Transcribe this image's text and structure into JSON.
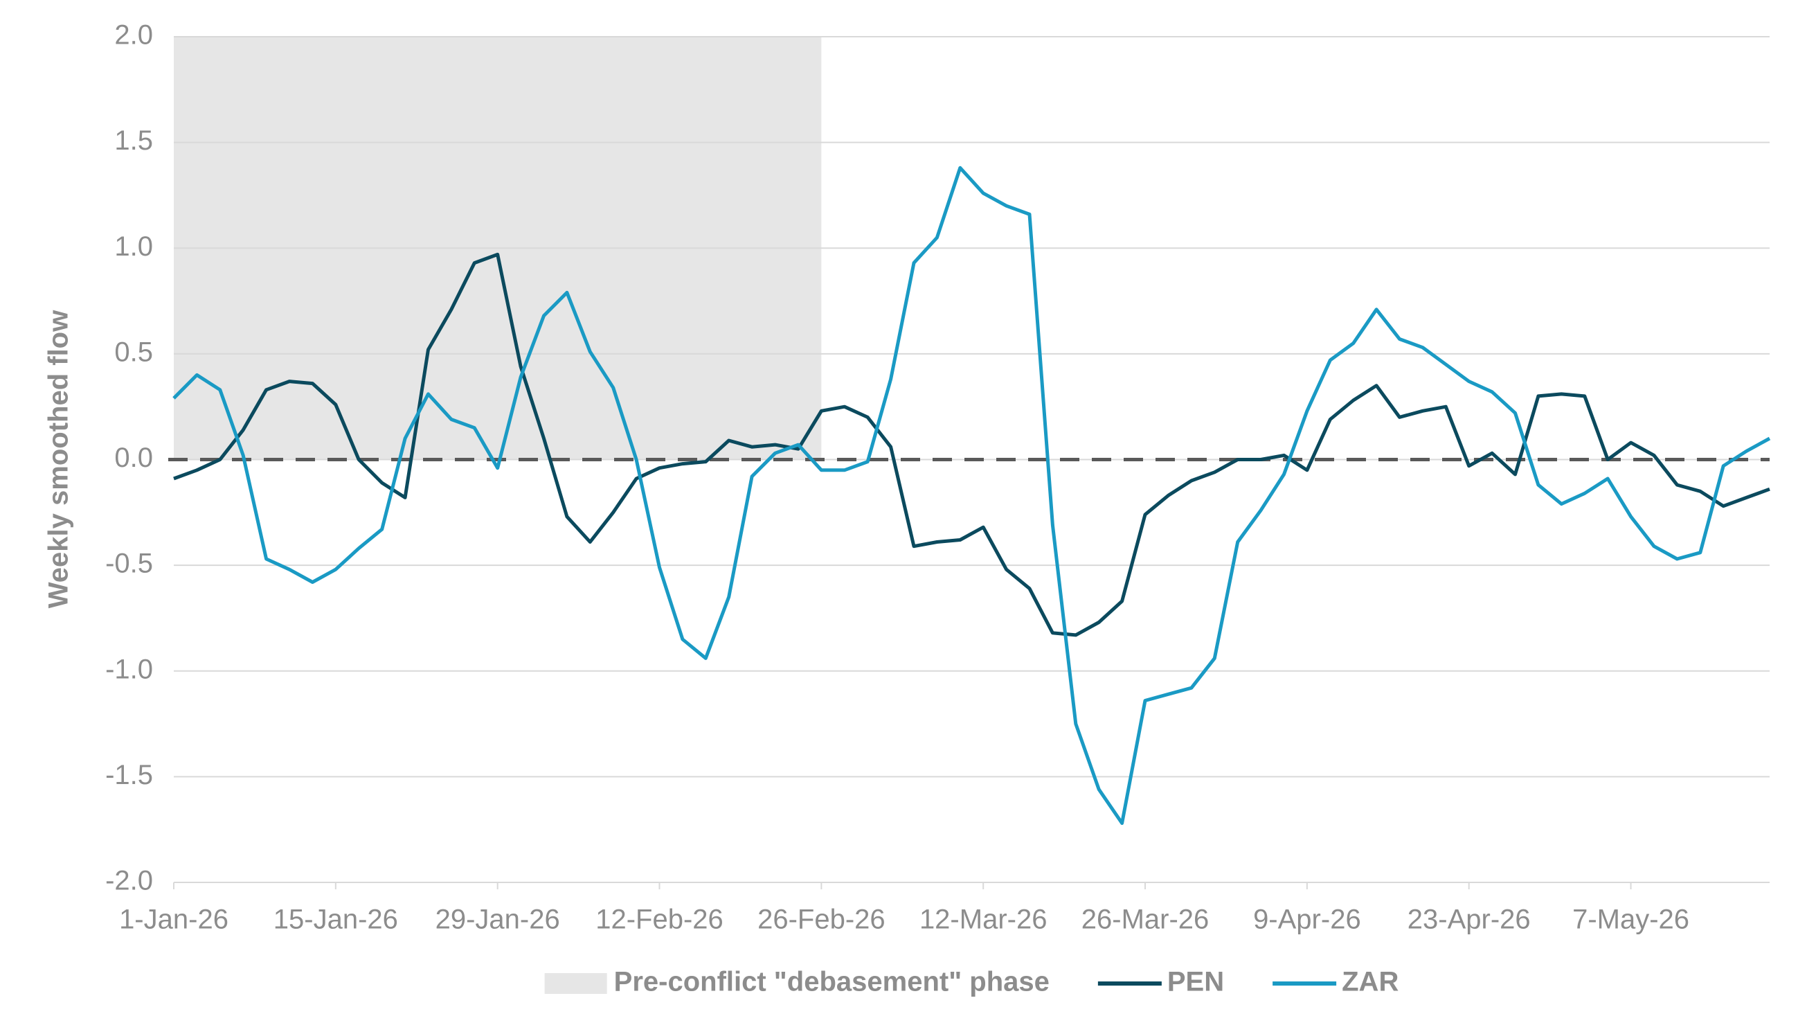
{
  "chart_data": {
    "type": "line",
    "y_label": "Weekly smoothed flow",
    "x": [
      "2026-01-01",
      "2026-01-03",
      "2026-01-05",
      "2026-01-07",
      "2026-01-09",
      "2026-01-11",
      "2026-01-13",
      "2026-01-15",
      "2026-01-17",
      "2026-01-19",
      "2026-01-21",
      "2026-01-23",
      "2026-01-25",
      "2026-01-27",
      "2026-01-29",
      "2026-01-31",
      "2026-02-02",
      "2026-02-04",
      "2026-02-06",
      "2026-02-08",
      "2026-02-10",
      "2026-02-12",
      "2026-02-14",
      "2026-02-16",
      "2026-02-18",
      "2026-02-20",
      "2026-02-22",
      "2026-02-24",
      "2026-02-26",
      "2026-02-28",
      "2026-03-02",
      "2026-03-04",
      "2026-03-06",
      "2026-03-08",
      "2026-03-10",
      "2026-03-12",
      "2026-03-14",
      "2026-03-16",
      "2026-03-18",
      "2026-03-20",
      "2026-03-22",
      "2026-03-24",
      "2026-03-26",
      "2026-03-28",
      "2026-03-30",
      "2026-04-01",
      "2026-04-03",
      "2026-04-05",
      "2026-04-07",
      "2026-04-09",
      "2026-04-11",
      "2026-04-13",
      "2026-04-15",
      "2026-04-17",
      "2026-04-19",
      "2026-04-21",
      "2026-04-23",
      "2026-04-25",
      "2026-04-27",
      "2026-04-29",
      "2026-05-01",
      "2026-05-03",
      "2026-05-05",
      "2026-05-07",
      "2026-05-09",
      "2026-05-11",
      "2026-05-13",
      "2026-05-15",
      "2026-05-17",
      "2026-05-19"
    ],
    "series": [
      {
        "name": "PEN",
        "color": "#0b4a5e",
        "values": [
          -0.09,
          -0.05,
          0.0,
          0.14,
          0.33,
          0.37,
          0.36,
          0.26,
          0.0,
          -0.11,
          -0.18,
          0.52,
          0.71,
          0.93,
          0.97,
          0.44,
          0.1,
          -0.27,
          -0.39,
          -0.25,
          -0.09,
          -0.04,
          -0.02,
          -0.01,
          0.09,
          0.06,
          0.07,
          0.05,
          0.23,
          0.25,
          0.2,
          0.06,
          -0.41,
          -0.39,
          -0.38,
          -0.32,
          -0.52,
          -0.61,
          -0.82,
          -0.83,
          -0.77,
          -0.67,
          -0.26,
          -0.17,
          -0.1,
          -0.06,
          0.0,
          0.0,
          0.02,
          -0.05,
          0.19,
          0.28,
          0.35,
          0.2,
          0.23,
          0.25,
          -0.03,
          0.03,
          -0.07,
          0.3,
          0.31,
          0.3,
          0.0,
          0.08,
          0.02,
          -0.12,
          -0.15,
          -0.22,
          -0.18,
          -0.14
        ]
      },
      {
        "name": "ZAR",
        "color": "#1a9ac4",
        "values": [
          0.29,
          0.4,
          0.33,
          0.02,
          -0.47,
          -0.52,
          -0.58,
          -0.52,
          -0.42,
          -0.33,
          0.1,
          0.31,
          0.19,
          0.15,
          -0.04,
          0.39,
          0.68,
          0.79,
          0.51,
          0.34,
          0.0,
          -0.51,
          -0.85,
          -0.94,
          -0.65,
          -0.08,
          0.03,
          0.07,
          -0.05,
          -0.05,
          -0.01,
          0.38,
          0.93,
          1.05,
          1.38,
          1.26,
          1.2,
          1.16,
          -0.31,
          -1.25,
          -1.56,
          -1.72,
          -1.14,
          -1.11,
          -1.08,
          -0.94,
          -0.39,
          -0.24,
          -0.07,
          0.23,
          0.47,
          0.55,
          0.71,
          0.57,
          0.53,
          0.45,
          0.37,
          0.32,
          0.22,
          -0.12,
          -0.21,
          -0.16,
          -0.09,
          -0.27,
          -0.41,
          -0.47,
          -0.44,
          -0.03,
          0.04,
          0.1
        ]
      }
    ],
    "shaded_region": {
      "label": "Pre-conflict \"debasement\" phase",
      "color": "#e6e6e6",
      "x": [
        "2026-01-01",
        "2026-02-26"
      ],
      "y": [
        0,
        2
      ]
    },
    "reference_line": {
      "value": 0,
      "color": "#595959",
      "dashed": true
    },
    "xlim": [
      "2026-01-01",
      "2026-05-19"
    ],
    "xticks": [
      {
        "value": "2026-01-01",
        "label": "1-Jan-26"
      },
      {
        "value": "2026-01-15",
        "label": "15-Jan-26"
      },
      {
        "value": "2026-01-29",
        "label": "29-Jan-26"
      },
      {
        "value": "2026-02-12",
        "label": "12-Feb-26"
      },
      {
        "value": "2026-02-26",
        "label": "26-Feb-26"
      },
      {
        "value": "2026-03-12",
        "label": "12-Mar-26"
      },
      {
        "value": "2026-03-26",
        "label": "26-Mar-26"
      },
      {
        "value": "2026-04-09",
        "label": "9-Apr-26"
      },
      {
        "value": "2026-04-23",
        "label": "23-Apr-26"
      },
      {
        "value": "2026-05-07",
        "label": "7-May-26"
      }
    ],
    "ylim": [
      -2,
      2
    ],
    "yticks": [
      {
        "value": -2,
        "label": "-2.0"
      },
      -1.5,
      {
        "value": -1,
        "label": "-1.0"
      },
      -0.5,
      {
        "value": 0,
        "label": "0.0"
      },
      0.5,
      {
        "value": 1,
        "label": "1.0"
      },
      1.5,
      {
        "value": 2,
        "label": "2.0"
      }
    ],
    "grid": true,
    "legend": "bottom"
  }
}
